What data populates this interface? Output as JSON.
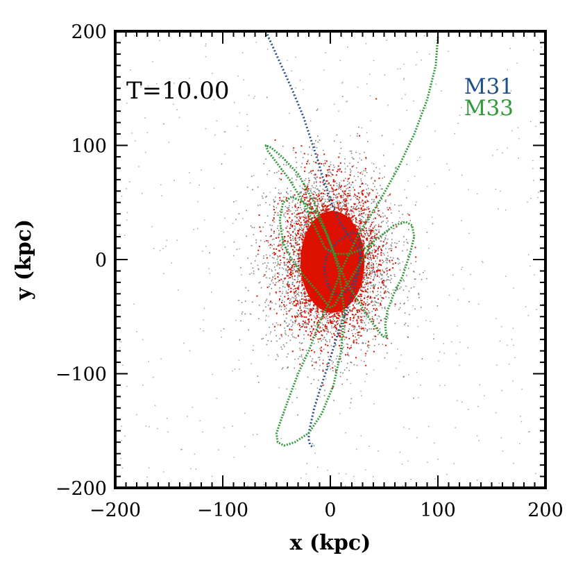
{
  "chart_data": {
    "type": "scatter",
    "xlabel": "x (kpc)",
    "ylabel": "y (kpc)",
    "xlim": [
      -200,
      200
    ],
    "ylim": [
      -200,
      200
    ],
    "x_ticks": [
      -200,
      -100,
      0,
      100,
      200
    ],
    "y_ticks": [
      -200,
      -100,
      0,
      100,
      200
    ],
    "x_tick_labels": [
      "−200",
      "−100",
      "0",
      "100",
      "200"
    ],
    "y_tick_labels": [
      "−200",
      "−100",
      "0",
      "100",
      "200"
    ],
    "annotation": "T=10.00",
    "grid": false,
    "legend_position": "top-right",
    "particle_clouds": [
      {
        "color": "#7f7f7f",
        "center": [
          0,
          0
        ],
        "sigma": [
          30,
          40
        ]
      },
      {
        "color": "#dd1100",
        "center": [
          0,
          0
        ],
        "sigma": [
          22,
          33
        ]
      }
    ],
    "series": [
      {
        "name": "M31",
        "color": "#1f4e8c",
        "x": [
          -60,
          -48,
          -36,
          -25,
          -18,
          -12,
          -7,
          -2,
          3,
          9,
          15,
          20,
          24,
          27,
          28,
          27,
          24,
          20,
          15,
          10,
          4,
          -1,
          -4,
          -6,
          -4,
          1,
          7,
          14,
          20,
          25,
          28,
          28,
          26,
          21,
          15,
          8,
          2,
          -4,
          -10,
          -15,
          -18,
          -20,
          -20,
          -19,
          -17,
          -15
        ],
        "y": [
          200,
          175,
          150,
          125,
          105,
          88,
          72,
          58,
          45,
          33,
          24,
          17,
          12,
          8,
          2,
          -6,
          -14,
          -22,
          -28,
          -31,
          -30,
          -25,
          -17,
          -8,
          2,
          10,
          16,
          21,
          24,
          23,
          15,
          3,
          -12,
          -28,
          -45,
          -62,
          -80,
          -98,
          -115,
          -130,
          -143,
          -152,
          -158,
          -162,
          -164,
          -163
        ]
      },
      {
        "name": "M33",
        "color": "#2e9a3a",
        "x": [
          100,
          98,
          90,
          78,
          63,
          45,
          25,
          10,
          0,
          -10,
          -20,
          -30,
          -38,
          -45,
          -50,
          -49,
          -43,
          -33,
          -20,
          -8,
          3,
          10,
          13,
          8,
          -2,
          -15,
          -30,
          -45,
          -55,
          -60,
          -58,
          -50,
          -38,
          -25,
          -15,
          -5,
          5,
          18,
          32,
          46,
          59,
          70,
          76,
          78,
          74,
          67,
          59,
          53,
          51,
          52,
          53,
          50,
          44,
          35,
          25,
          15,
          8,
          2,
          -5,
          -13,
          -24,
          -36,
          -44,
          -47,
          -44,
          -36,
          -24,
          -12,
          -4,
          0,
          4,
          10,
          20,
          30,
          40
        ],
        "y": [
          195,
          170,
          140,
          110,
          80,
          50,
          20,
          -10,
          -35,
          -55,
          -80,
          -100,
          -120,
          -138,
          -152,
          -160,
          -163,
          -160,
          -152,
          -135,
          -110,
          -80,
          -45,
          -10,
          20,
          50,
          75,
          90,
          98,
          100,
          95,
          85,
          70,
          50,
          30,
          10,
          5,
          5,
          10,
          20,
          30,
          33,
          30,
          20,
          5,
          -15,
          -30,
          -45,
          -58,
          -65,
          -68,
          -68,
          -62,
          -50,
          -35,
          -20,
          -5,
          10,
          25,
          40,
          50,
          55,
          50,
          35,
          15,
          0,
          -15,
          -28,
          -38,
          -42,
          -40,
          -30,
          -15,
          0,
          15
        ]
      }
    ]
  }
}
